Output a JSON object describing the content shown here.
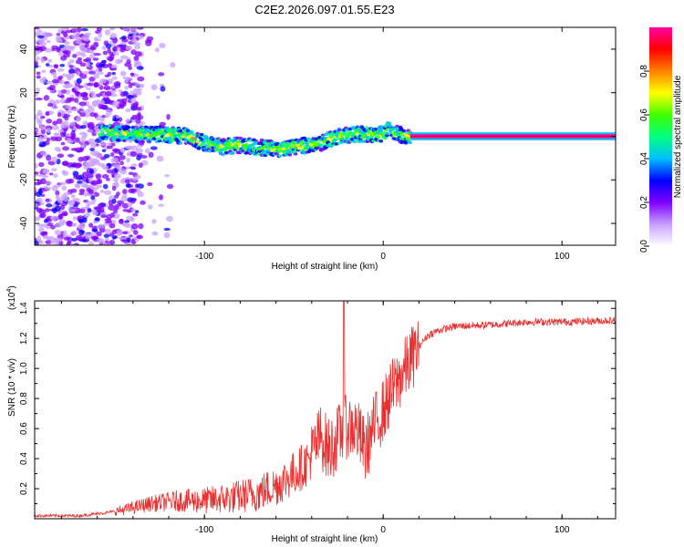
{
  "title": "C2E2.2026.097.01.55.E23",
  "chart_data": [
    {
      "type": "heatmap",
      "name": "spectrogram",
      "xlabel": "Height of straight line (km)",
      "ylabel": "Frequency (Hz)",
      "xlim": [
        -195,
        130
      ],
      "ylim": [
        -50,
        50
      ],
      "xticks": [
        -100,
        0,
        100
      ],
      "yticks": [
        -40,
        -20,
        0,
        20,
        40
      ],
      "ytick_labels": [
        "-40",
        "-20",
        "0",
        "20",
        "40"
      ],
      "xtick_labels": [
        "-100",
        "0",
        "100"
      ],
      "ridge": {
        "x": [
          -155,
          -140,
          -125,
          -110,
          -100,
          -90,
          -80,
          -70,
          -60,
          -50,
          -42,
          -35,
          -25,
          -15,
          -5,
          0,
          3,
          8,
          15,
          130
        ],
        "freq": [
          2,
          1,
          1,
          0,
          -3,
          -5,
          -4,
          -5,
          -6,
          -5,
          -4,
          -3,
          0,
          1,
          1,
          1,
          3,
          1,
          0,
          0
        ]
      },
      "colorbar": {
        "label": "Normalized spectral amplitude",
        "ticks": [
          0.0,
          0.2,
          0.4,
          0.6,
          0.8
        ],
        "tick_labels": [
          "0.0",
          "0.2",
          "0.4",
          "0.6",
          "0.8"
        ],
        "range": [
          0,
          1
        ],
        "colors": [
          "#ffffff",
          "#c8a0ff",
          "#8000ff",
          "#0000ff",
          "#00c0ff",
          "#00ff80",
          "#40ff00",
          "#ffff00",
          "#ff8000",
          "#ff0000",
          "#ff00a0"
        ]
      }
    },
    {
      "type": "line",
      "name": "snr",
      "xlabel": "Height of straight line (km)",
      "ylabel": "SNR (10 * v/v)",
      "multiplier": "(x10",
      "multiplier_exp": "4",
      "multiplier_close": ")",
      "xlim": [
        -195,
        130
      ],
      "ylim": [
        0,
        1.45
      ],
      "xticks": [
        -100,
        0,
        100
      ],
      "xtick_labels": [
        "-100",
        "0",
        "100"
      ],
      "yticks": [
        0.2,
        0.4,
        0.6,
        0.8,
        1.0,
        1.2,
        1.4
      ],
      "ytick_labels": [
        "0.2",
        "0.4",
        "0.6",
        "0.8",
        "1.0",
        "1.2",
        "1.4"
      ],
      "series": [
        {
          "name": "SNR",
          "color": "#e83030",
          "x": [
            -195,
            -170,
            -155,
            -145,
            -130,
            -115,
            -100,
            -85,
            -70,
            -60,
            -50,
            -42,
            -35,
            -30,
            -25,
            -20,
            -15,
            -10,
            -5,
            0,
            5,
            10,
            15,
            20,
            25,
            30,
            40,
            60,
            80,
            100,
            130
          ],
          "y": [
            0.02,
            0.02,
            0.04,
            0.06,
            0.1,
            0.12,
            0.12,
            0.14,
            0.17,
            0.22,
            0.3,
            0.38,
            0.55,
            0.45,
            0.55,
            0.62,
            0.6,
            0.45,
            0.62,
            0.72,
            0.85,
            0.95,
            1.05,
            1.15,
            1.22,
            1.25,
            1.28,
            1.29,
            1.31,
            1.31,
            1.32
          ]
        }
      ],
      "spike": {
        "x": -22,
        "y": 1.45
      }
    }
  ]
}
